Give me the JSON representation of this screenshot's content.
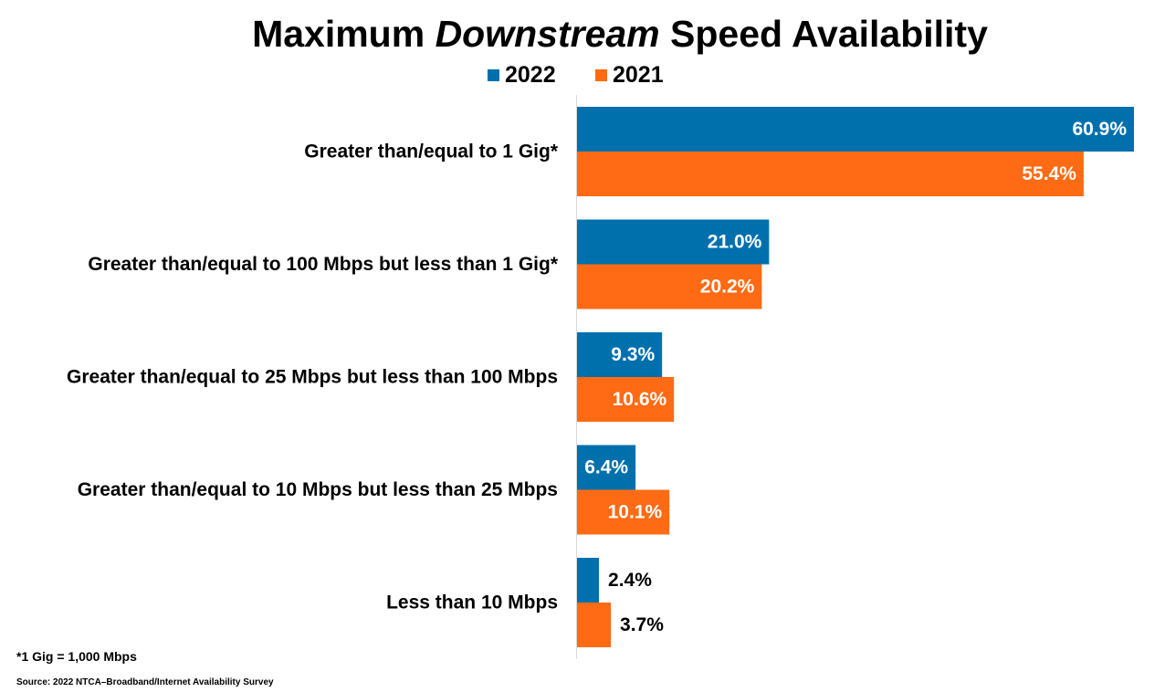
{
  "title": {
    "part1": "Maximum ",
    "part2": "Downstream",
    "part3": " Speed Availability"
  },
  "legend": [
    {
      "label": "2022",
      "color": "#0070AD"
    },
    {
      "label": "2021",
      "color": "#FF6B14"
    }
  ],
  "footnote": "*1 Gig = 1,000 Mbps",
  "source": "Source: 2022 NTCA–Broadband/Internet Availability  Survey",
  "chart_data": {
    "type": "bar",
    "orientation": "horizontal",
    "title": "Maximum Downstream Speed Availability",
    "categories": [
      "Greater than/equal to 1 Gig*",
      "Greater than/equal to 100 Mbps but less than 1 Gig*",
      "Greater than/equal to 25 Mbps but less than 100 Mbps",
      "Greater than/equal to 10 Mbps but less than 25 Mbps",
      "Less than 10 Mbps"
    ],
    "series": [
      {
        "name": "2022",
        "color": "#0070AD",
        "values": [
          60.9,
          21.0,
          9.3,
          6.4,
          2.4
        ],
        "labels": [
          "60.9%",
          "21.0%",
          "9.3%",
          "6.4%",
          "2.4%"
        ]
      },
      {
        "name": "2021",
        "color": "#FF6B14",
        "values": [
          55.4,
          20.2,
          10.6,
          10.1,
          3.7
        ],
        "labels": [
          "55.4%",
          "20.2%",
          "10.6%",
          "10.1%",
          "3.7%"
        ]
      }
    ],
    "xlim": [
      0,
      61
    ],
    "grid": false,
    "legend_position": "top-center",
    "xlabel": "",
    "ylabel": ""
  }
}
